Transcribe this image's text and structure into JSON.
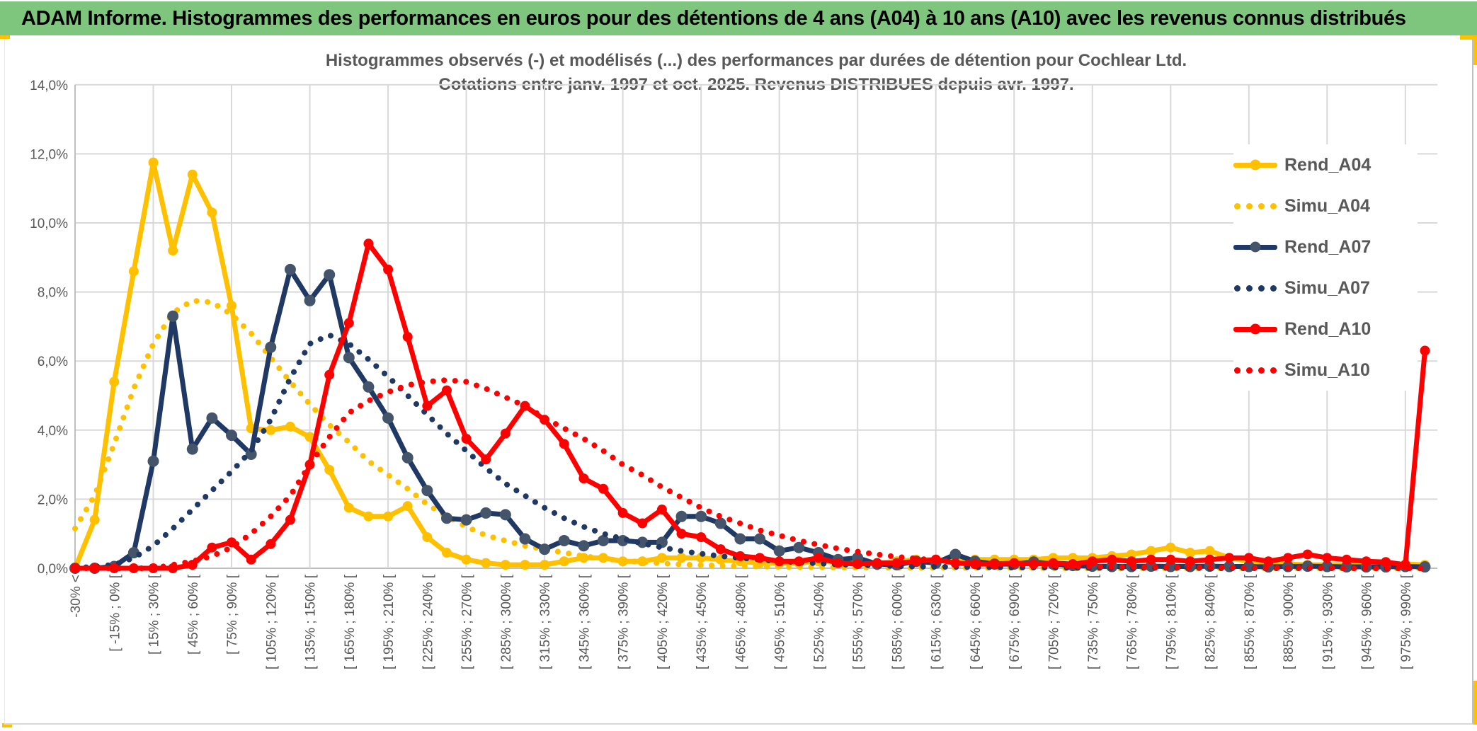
{
  "banner": {
    "title": "ADAM Informe. Histogrammes des performances en euros pour des détentions de 4 ans (A04) à 10 ans (A10) avec les revenus connus distribués",
    "bg_color": "#7EC67E"
  },
  "chart_data": {
    "type": "line",
    "title": "Histogrammes observés (-) et modélisés (...) des performances par durées de détention pour Cochlear Ltd.",
    "subtitle": "Cotations entre janv. 1997 et oct. 2025. Revenus DISTRIBUES depuis avr. 1997.",
    "ylabel": "",
    "xlabel": "",
    "ylim": [
      0,
      14
    ],
    "y_tick_step_pct": 2,
    "y_tick_labels": [
      "0,0%",
      "2,0%",
      "4,0%",
      "6,0%",
      "8,0%",
      "10,0%",
      "12,0%",
      "14,0%"
    ],
    "x_bin_width_pct": 15,
    "x_labels_every_n_bins": 2,
    "x_gridlines_every_n_bins": 4,
    "legend_position": "right",
    "grid": true,
    "x_tick_labels": [
      "-30% <",
      "[ -15% ; 0% [",
      "[ 15% ; 30% [",
      "[ 45% ; 60% [",
      "[ 75% ; 90% [",
      "[ 105% ; 120% [",
      "[ 135% ; 150% [",
      "[ 165% ; 180% [",
      "[ 195% ; 210% [",
      "[ 225% ; 240% [",
      "[ 255% ; 270% [",
      "[ 285% ; 300% [",
      "[ 315% ; 330% [",
      "[ 345% ; 360% [",
      "[ 375% ; 390% [",
      "[ 405% ; 420% [",
      "[ 435% ; 450% [",
      "[ 465% ; 480% [",
      "[ 495% ; 510% [",
      "[ 525% ; 540% [",
      "[ 555% ; 570% [",
      "[ 585% ; 600% [",
      "[ 615% ; 630% [",
      "[ 645% ; 660% [",
      "[ 675% ; 690% [",
      "[ 705% ; 720% [",
      "[ 735% ; 750% [",
      "[ 765% ; 780% [",
      "[ 795% ; 810% [",
      "[ 825% ; 840% [",
      "[ 855% ; 870% [",
      "[ 885% ; 900% [",
      "[ 915% ; 930% [",
      "[ 945% ; 960% [",
      "[ 975% ; 990% ["
    ],
    "series": [
      {
        "name": "Rend_A04",
        "color": "#FFC000",
        "marker_color": "#FFC000",
        "style": "solid",
        "marker": true,
        "values": [
          0,
          1.4,
          5.4,
          8.6,
          11.75,
          9.2,
          11.4,
          10.3,
          7.6,
          4.05,
          4.0,
          4.1,
          3.8,
          2.85,
          1.75,
          1.5,
          1.5,
          1.8,
          0.9,
          0.45,
          0.25,
          0.15,
          0.1,
          0.1,
          0.1,
          0.2,
          0.3,
          0.3,
          0.2,
          0.2,
          0.3,
          0.3,
          0.3,
          0.25,
          0.2,
          0.15,
          0.15,
          0.15,
          0.2,
          0.2,
          0.15,
          0.15,
          0.2,
          0.25,
          0.25,
          0.2,
          0.25,
          0.25,
          0.25,
          0.25,
          0.3,
          0.3,
          0.3,
          0.35,
          0.4,
          0.5,
          0.6,
          0.45,
          0.5,
          0.3,
          0.2,
          0.15,
          0.12,
          0.1,
          0.1,
          0.1,
          0.1,
          0.1,
          0.12,
          0.1
        ]
      },
      {
        "name": "Simu_A04",
        "color": "#FFC000",
        "style": "dotted",
        "marker": false,
        "values": [
          1.15,
          2.1,
          3.6,
          5.2,
          6.5,
          7.4,
          7.75,
          7.7,
          7.35,
          6.8,
          6.1,
          5.4,
          4.75,
          4.15,
          3.65,
          3.1,
          2.7,
          2.3,
          1.85,
          1.5,
          1.2,
          0.95,
          0.8,
          0.65,
          0.55,
          0.45,
          0.35,
          0.28,
          0.22,
          0.18,
          0.14,
          0.11,
          0.09,
          0.07,
          0.06,
          0.05,
          0.04,
          0.03,
          0.03,
          0.02,
          0.02,
          0.02,
          0.01,
          0.01,
          0.01,
          0.01,
          0.01,
          0.01,
          0.01,
          0.01,
          0,
          0,
          0,
          0,
          0,
          0,
          0,
          0,
          0,
          0,
          0,
          0,
          0,
          0,
          0,
          0,
          0,
          0,
          0,
          0
        ]
      },
      {
        "name": "Rend_A07",
        "color": "#203864",
        "marker_color": "#44546A",
        "style": "solid",
        "marker": true,
        "values": [
          0,
          0,
          0.05,
          0.45,
          3.1,
          7.3,
          3.45,
          4.35,
          3.85,
          3.3,
          6.4,
          8.65,
          7.75,
          8.5,
          6.1,
          5.25,
          4.35,
          3.2,
          2.25,
          1.45,
          1.4,
          1.6,
          1.55,
          0.85,
          0.55,
          0.8,
          0.65,
          0.8,
          0.8,
          0.75,
          0.75,
          1.5,
          1.5,
          1.3,
          0.85,
          0.85,
          0.5,
          0.6,
          0.45,
          0.25,
          0.3,
          0.12,
          0.1,
          0.2,
          0.15,
          0.4,
          0.2,
          0.12,
          0.12,
          0.18,
          0.12,
          0.08,
          0.06,
          0.05,
          0.05,
          0.06,
          0.05,
          0.05,
          0.06,
          0.05,
          0.05,
          0.04,
          0.05,
          0.06,
          0.05,
          0.04,
          0.04,
          0.04,
          0.05,
          0.04
        ]
      },
      {
        "name": "Simu_A07",
        "color": "#203864",
        "style": "dotted",
        "marker": false,
        "values": [
          0,
          0.05,
          0.1,
          0.3,
          0.65,
          1.15,
          1.7,
          2.25,
          2.8,
          3.4,
          4.3,
          5.5,
          6.5,
          6.75,
          6.5,
          6.05,
          5.55,
          5.0,
          4.45,
          3.9,
          3.4,
          2.9,
          2.45,
          2.1,
          1.75,
          1.45,
          1.2,
          1.0,
          0.85,
          0.72,
          0.6,
          0.5,
          0.42,
          0.35,
          0.3,
          0.25,
          0.2,
          0.17,
          0.14,
          0.11,
          0.09,
          0.08,
          0.06,
          0.05,
          0.04,
          0.04,
          0.03,
          0.03,
          0.02,
          0.02,
          0.02,
          0.01,
          0.01,
          0.01,
          0.01,
          0.01,
          0.01,
          0.01,
          0,
          0,
          0,
          0,
          0,
          0,
          0,
          0,
          0,
          0,
          0,
          0
        ]
      },
      {
        "name": "Rend_A10",
        "color": "#FF0000",
        "marker_color": "#FF0000",
        "style": "solid",
        "marker": true,
        "values": [
          0,
          0,
          0,
          0,
          0,
          0,
          0.1,
          0.6,
          0.75,
          0.25,
          0.7,
          1.4,
          3.0,
          5.6,
          7.1,
          9.4,
          8.65,
          6.7,
          4.7,
          5.15,
          3.75,
          3.15,
          3.9,
          4.7,
          4.3,
          3.6,
          2.6,
          2.3,
          1.6,
          1.3,
          1.7,
          1.0,
          0.9,
          0.55,
          0.35,
          0.3,
          0.2,
          0.2,
          0.3,
          0.15,
          0.12,
          0.15,
          0.15,
          0.2,
          0.25,
          0.15,
          0.12,
          0.12,
          0.15,
          0.12,
          0.15,
          0.12,
          0.2,
          0.25,
          0.2,
          0.25,
          0.25,
          0.2,
          0.25,
          0.3,
          0.3,
          0.2,
          0.3,
          0.4,
          0.3,
          0.25,
          0.2,
          0.18,
          0.1,
          6.3
        ]
      },
      {
        "name": "Simu_A10",
        "color": "#FF0000",
        "style": "dotted",
        "marker": false,
        "values": [
          0,
          0,
          0,
          0,
          0,
          0.1,
          0.2,
          0.35,
          0.6,
          1.0,
          1.5,
          2.1,
          3.0,
          3.8,
          4.5,
          4.85,
          5.1,
          5.3,
          5.4,
          5.45,
          5.4,
          5.2,
          4.95,
          4.7,
          4.35,
          4.05,
          3.75,
          3.4,
          3.0,
          2.7,
          2.35,
          2.05,
          1.75,
          1.5,
          1.3,
          1.1,
          0.95,
          0.8,
          0.68,
          0.57,
          0.48,
          0.4,
          0.33,
          0.28,
          0.23,
          0.19,
          0.16,
          0.13,
          0.11,
          0.09,
          0.07,
          0.06,
          0.05,
          0.04,
          0.04,
          0.03,
          0.03,
          0.02,
          0.02,
          0.02,
          0.01,
          0.01,
          0.01,
          0.01,
          0.01,
          0,
          0,
          0,
          0,
          0
        ]
      }
    ]
  },
  "colors": {
    "banner_green": "#7EC67E",
    "gold_accent": "#FFC000",
    "gridline": "#D9D9D9",
    "axis_line": "#BFBFBF",
    "axis_text": "#595959"
  }
}
